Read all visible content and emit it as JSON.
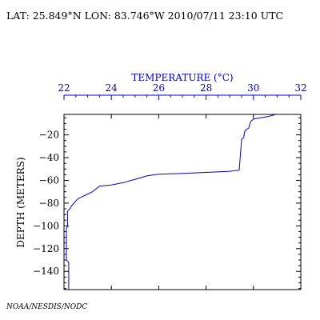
{
  "header": {
    "location_time": "LAT: 25.849°N LON: 83.746°W 2010/07/11 23:10 UTC"
  },
  "credit": "NOAA/NESDIS/NODC",
  "chart_data": {
    "type": "line",
    "title": "",
    "xlabel": "TEMPERATURE (°C)",
    "ylabel": "DEPTH (METERS)",
    "x_axis_position": "top",
    "xlim": [
      22,
      32
    ],
    "ylim": [
      -156,
      -2
    ],
    "x_ticks": [
      22,
      24,
      26,
      28,
      30,
      32
    ],
    "y_ticks": [
      -20,
      -40,
      -60,
      -80,
      -100,
      -120,
      -140
    ],
    "grid": false,
    "colors": {
      "line": "#0000cc",
      "xaxis_text": "#0000cc",
      "yaxis_text": "#000000"
    },
    "series": [
      {
        "x": [
          30.95,
          30.6,
          30.0,
          29.9,
          29.85,
          29.8,
          29.65,
          29.6,
          29.6,
          29.5,
          29.4,
          29.0,
          28.0,
          27.0,
          26.0,
          25.5,
          25.2,
          25.0,
          24.5,
          24.0,
          23.5,
          23.2,
          22.9,
          22.8,
          22.6,
          22.5,
          22.3,
          22.25,
          22.15,
          22.15,
          22.1,
          22.1,
          22.2,
          22.2
        ],
        "y": [
          -2,
          -4,
          -6,
          -8,
          -10,
          -14,
          -16,
          -20,
          -22,
          -24,
          -51,
          -52,
          -53,
          -53.8,
          -54.5,
          -56,
          -58,
          -59,
          -62,
          -64,
          -65,
          -70,
          -73,
          -74,
          -76,
          -78,
          -83,
          -85,
          -87,
          -100,
          -103,
          -130,
          -132,
          -156
        ]
      }
    ]
  }
}
